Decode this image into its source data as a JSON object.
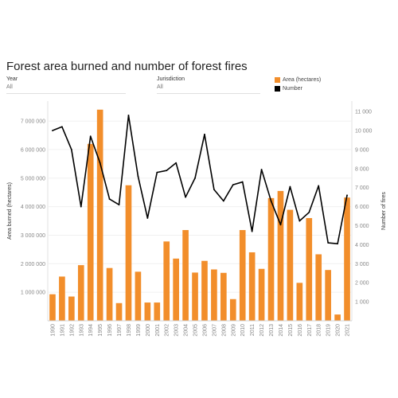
{
  "header": {
    "title": "Forest area burned and number of forest fires"
  },
  "filters": [
    {
      "label": "Year",
      "value": "All"
    },
    {
      "label": "Jurisdiction",
      "value": "All"
    }
  ],
  "legend": {
    "items": [
      {
        "label": "Area (hectares)",
        "color": "#f28e2b"
      },
      {
        "label": "Number",
        "color": "#000000"
      }
    ]
  },
  "chart_data": {
    "type": "bar",
    "title": "Forest area burned and number of forest fires",
    "categories": [
      "1990",
      "1991",
      "1992",
      "1993",
      "1994",
      "1995",
      "1996",
      "1997",
      "1998",
      "1999",
      "2000",
      "2001",
      "2002",
      "2003",
      "2004",
      "2005",
      "2006",
      "2007",
      "2008",
      "2009",
      "2010",
      "2011",
      "2012",
      "2013",
      "2014",
      "2015",
      "2016",
      "2017",
      "2018",
      "2019",
      "2020",
      "2021"
    ],
    "series": [
      {
        "name": "Area (hectares)",
        "type": "bar",
        "axis": "left",
        "color": "#f28e2b",
        "values": [
          930000,
          1550000,
          850000,
          1950000,
          6200000,
          7400000,
          1850000,
          620000,
          4750000,
          1720000,
          640000,
          640000,
          2780000,
          2180000,
          3180000,
          1690000,
          2100000,
          1800000,
          1680000,
          760000,
          3180000,
          2400000,
          1820000,
          4300000,
          4550000,
          3890000,
          1330000,
          3600000,
          2330000,
          1780000,
          220000,
          4320000
        ]
      },
      {
        "name": "Number",
        "type": "line",
        "axis": "right",
        "color": "#000000",
        "values": [
          10000,
          10200,
          9000,
          6000,
          9700,
          8300,
          6400,
          6100,
          10800,
          7600,
          5400,
          7800,
          7900,
          8300,
          6500,
          7500,
          9800,
          6900,
          6300,
          7150,
          7300,
          4700,
          7950,
          6300,
          5050,
          7050,
          5250,
          5700,
          7100,
          4100,
          4050,
          6600
        ]
      }
    ],
    "ylabel": "Area burned (hectares)",
    "y2label": "Number of fires",
    "ylim": [
      0,
      7700000
    ],
    "y2lim": [
      0,
      11550
    ],
    "yticks": [
      1000000,
      2000000,
      3000000,
      4000000,
      5000000,
      6000000,
      7000000
    ],
    "ytick_labels": [
      "1 000 000",
      "2 000 000",
      "3 000 000",
      "4 000 000",
      "5 000 000",
      "6 000 000",
      "7 000 000"
    ],
    "y2ticks": [
      1000,
      2000,
      3000,
      4000,
      5000,
      6000,
      7000,
      8000,
      9000,
      10000,
      11000
    ],
    "y2tick_labels": [
      "1 000",
      "2 000",
      "3 000",
      "4 000",
      "5 000",
      "6 000",
      "7 000",
      "8 000",
      "9 000",
      "10 000",
      "11 000"
    ],
    "grid": true,
    "legend_position": "top-right"
  }
}
